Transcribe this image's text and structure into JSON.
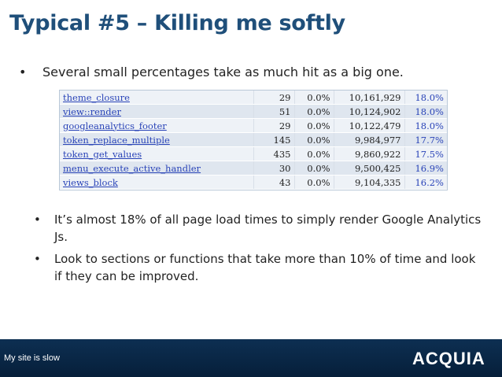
{
  "slide": {
    "title": "Typical #5 – Killing me softly",
    "bullet_main": "Several small percentages take as much hit as a big one.",
    "sub_bullets": [
      "It’s almost 18% of all page load times to simply render Google Analytics Js.",
      "Look to sections or functions that take more than 10% of time and look if they can be improved."
    ],
    "bullet_glyph": "•"
  },
  "table": {
    "rows": [
      {
        "fn": "theme_closure",
        "calls": "29",
        "pct1": "0.0%",
        "time": "10,161,929",
        "pct2": "18.0%"
      },
      {
        "fn": "view::render",
        "calls": "51",
        "pct1": "0.0%",
        "time": "10,124,902",
        "pct2": "18.0%"
      },
      {
        "fn": "googleanalytics_footer",
        "calls": "29",
        "pct1": "0.0%",
        "time": "10,122,479",
        "pct2": "18.0%"
      },
      {
        "fn": "token_replace_multiple",
        "calls": "145",
        "pct1": "0.0%",
        "time": "9,984,977",
        "pct2": "17.7%"
      },
      {
        "fn": "token_get_values",
        "calls": "435",
        "pct1": "0.0%",
        "time": "9,860,922",
        "pct2": "17.5%"
      },
      {
        "fn": "menu_execute_active_handler",
        "calls": "30",
        "pct1": "0.0%",
        "time": "9,500,425",
        "pct2": "16.9%"
      },
      {
        "fn": "views_block",
        "calls": "43",
        "pct1": "0.0%",
        "time": "9,104,335",
        "pct2": "16.2%"
      }
    ]
  },
  "footer": {
    "text": "My site is slow",
    "logo_text": "ACQUIA"
  },
  "colors": {
    "title": "#1f4f7a",
    "link": "#2a44b8",
    "footer_bg": "#061f3a"
  }
}
